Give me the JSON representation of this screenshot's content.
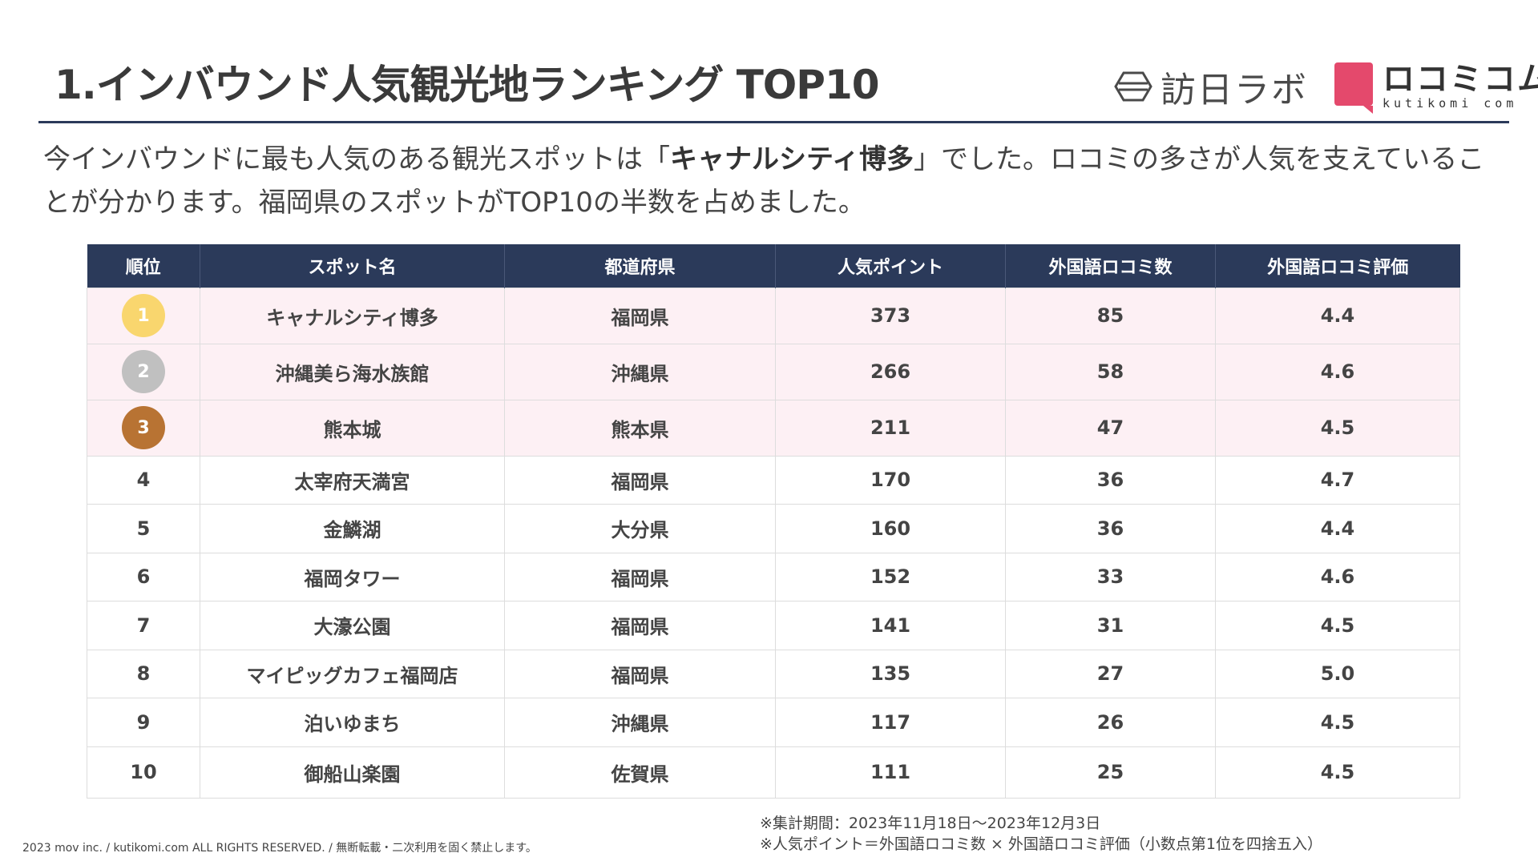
{
  "header": {
    "title": "1.インバウンド人気観光地ランキング TOP10",
    "logo_honichi": "訪日ラボ",
    "logo_kutikomi_jp": "ロコミコム",
    "logo_kutikomi_en": "kutikomi com",
    "brand_color": "#e4496c"
  },
  "lead": {
    "part1": "今インバウンドに最も人気のある観光スポットは「",
    "highlight": "キャナルシティ博多",
    "part2": "」でした。ロコミの多さが人気を支えていることが分かります。福岡県のスポットがTOP10の半数を占めました。"
  },
  "table": {
    "columns": [
      "順位",
      "スポット名",
      "都道府県",
      "人気ポイント",
      "外国語ロコミ数",
      "外国語ロコミ評価"
    ],
    "rows": [
      {
        "rank": "1",
        "spot": "キャナルシティ博多",
        "prefecture": "福岡県",
        "points": "373",
        "count": "85",
        "rating": "4.4",
        "medal_color": "#f9d66e"
      },
      {
        "rank": "2",
        "spot": "沖縄美ら海水族館",
        "prefecture": "沖縄県",
        "points": "266",
        "count": "58",
        "rating": "4.6",
        "medal_color": "#c0c0c0"
      },
      {
        "rank": "3",
        "spot": "熊本城",
        "prefecture": "熊本県",
        "points": "211",
        "count": "47",
        "rating": "4.5",
        "medal_color": "#b87333"
      },
      {
        "rank": "4",
        "spot": "太宰府天満宮",
        "prefecture": "福岡県",
        "points": "170",
        "count": "36",
        "rating": "4.7"
      },
      {
        "rank": "5",
        "spot": "金鱗湖",
        "prefecture": "大分県",
        "points": "160",
        "count": "36",
        "rating": "4.4"
      },
      {
        "rank": "6",
        "spot": "福岡タワー",
        "prefecture": "福岡県",
        "points": "152",
        "count": "33",
        "rating": "4.6"
      },
      {
        "rank": "7",
        "spot": "大濠公園",
        "prefecture": "福岡県",
        "points": "141",
        "count": "31",
        "rating": "4.5"
      },
      {
        "rank": "8",
        "spot": "マイピッグカフェ福岡店",
        "prefecture": "福岡県",
        "points": "135",
        "count": "27",
        "rating": "5.0"
      },
      {
        "rank": "9",
        "spot": "泊いゆまち",
        "prefecture": "沖縄県",
        "points": "117",
        "count": "26",
        "rating": "4.5"
      },
      {
        "rank": "10",
        "spot": "御船山楽園",
        "prefecture": "佐賀県",
        "points": "111",
        "count": "25",
        "rating": "4.5"
      }
    ]
  },
  "notes": {
    "period": "※集計期間：2023年11月18日〜2023年12月3日",
    "formula": "※人気ポイント＝外国語ロコミ数 × 外国語ロコミ評価（小数点第1位を四捨五入）"
  },
  "footer": {
    "copyright": "2023 mov inc. / kutikomi.com ALL RIGHTS RESERVED. / 無断転載・二次利用を固く禁止します。"
  }
}
